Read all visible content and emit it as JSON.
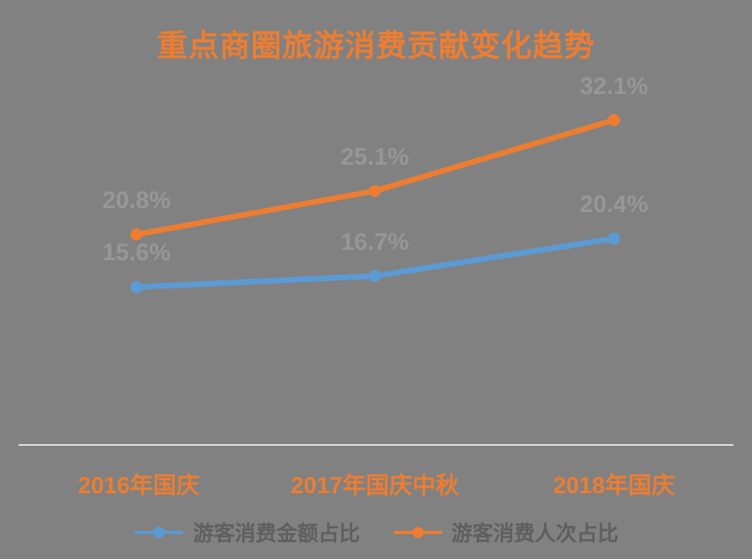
{
  "title": "重点商圈旅游消费贡献变化趋势",
  "colors": {
    "background": "#818181",
    "title": "#ED7D31",
    "series_blue": "#5B9BD5",
    "series_orange": "#ED7D31",
    "data_label": "#979797",
    "x_axis_label": "#ED7D31",
    "axis_line": "#E2E2E2",
    "legend_text": "#5D5D5D"
  },
  "chart_data": {
    "type": "line",
    "title": "重点商圈旅游消费贡献变化趋势",
    "categories": [
      "2016年国庆",
      "2017年国庆中秋",
      "2018年国庆"
    ],
    "series": [
      {
        "name": "游客消费金额占比",
        "color": "#5B9BD5",
        "values": [
          15.6,
          16.7,
          20.4
        ],
        "labels": [
          "15.6%",
          "16.7%",
          "20.4%"
        ]
      },
      {
        "name": "游客消费人次占比",
        "color": "#ED7D31",
        "values": [
          20.8,
          25.1,
          32.1
        ],
        "labels": [
          "20.8%",
          "25.1%",
          "32.1%"
        ]
      }
    ],
    "value_unit": "%",
    "ylim": [
      0,
      40
    ],
    "grid": false,
    "y_axis_visible": false,
    "x_axis_line": true,
    "data_labels": "above",
    "legend_position": "bottom"
  }
}
